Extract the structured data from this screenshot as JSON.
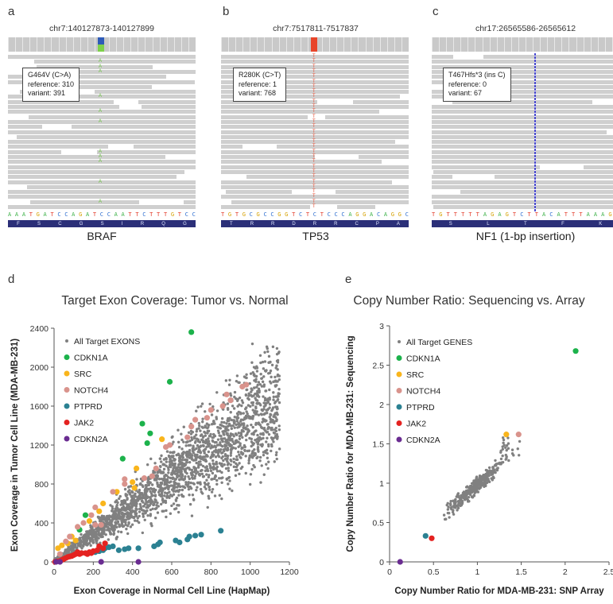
{
  "panels": {
    "a": {
      "letter": "a",
      "locus": "chr7:140127873-140127899",
      "gene": "BRAF",
      "mutation": "G464V (C>A)",
      "reference": "reference: 310",
      "variant": "variant: 391",
      "sequence": "AAATGATCCAGATCCAATTCTTTGTCC",
      "aminoacids": "FSCGSIRQG",
      "coverage_color": "#2e5bb8",
      "alt_color": "#7ed14a",
      "variant_base": "A",
      "variant_color": "#6cc241"
    },
    "b": {
      "letter": "b",
      "locus": "chr7:7517811-7517837",
      "gene": "TP53",
      "mutation": "R280K (C>T)",
      "reference": "reference: 1",
      "variant": "variant: 768",
      "sequence": "TGTGCGCCGGTCTCTCCCAGGACAGGC",
      "aminoacids": "TRRDRRCPA",
      "coverage_color": "#e8452a",
      "variant_base": "T",
      "variant_color": "#e8452a"
    },
    "c": {
      "letter": "c",
      "locus": "chr17:26565586-26565612",
      "gene": "NF1 (1-bp insertion)",
      "mutation": "T467Hfs*3 (ins C)",
      "reference": "reference: 0",
      "variant": "variant: 67",
      "sequence": "TGTTTTTAGAGTCTTACATTTAAAGA",
      "aminoacids": "SLTFK",
      "variant_color": "#4a4ad0"
    }
  },
  "chart_data": [
    {
      "panel": "d",
      "type": "scatter",
      "title": "Target Exon Coverage: Tumor vs. Normal",
      "xlabel": "Exon Coverage in Normal Cell Line (HapMap)",
      "ylabel": "Exon Coverage in Tumor Cell Line (MDA-MB-231)",
      "xlim": [
        0,
        1200
      ],
      "ylim": [
        0,
        2400
      ],
      "xticks": [
        "0",
        "200",
        "400",
        "600",
        "800",
        "1000",
        "1200"
      ],
      "yticks": [
        "0",
        "400",
        "800",
        "1200",
        "1600",
        "2000",
        "2400"
      ],
      "legend_position": "top-left",
      "series": [
        {
          "name": "All Target EXONS",
          "color": "#808080",
          "points": "cloud"
        },
        {
          "name": "CDKN1A",
          "color": "#1cb24b",
          "points": [
            [
              700,
              2360
            ],
            [
              590,
              1850
            ],
            [
              450,
              1420
            ],
            [
              490,
              1320
            ],
            [
              475,
              1220
            ],
            [
              350,
              1060
            ],
            [
              160,
              480
            ],
            [
              130,
              330
            ]
          ]
        },
        {
          "name": "SRC",
          "color": "#f9b51c",
          "points": [
            [
              550,
              1260
            ],
            [
              420,
              960
            ],
            [
              400,
              820
            ],
            [
              410,
              760
            ],
            [
              320,
              720
            ],
            [
              250,
              600
            ],
            [
              230,
              520
            ],
            [
              180,
              420
            ],
            [
              90,
              260
            ],
            [
              110,
              220
            ],
            [
              70,
              190
            ],
            [
              40,
              170
            ],
            [
              20,
              140
            ]
          ]
        },
        {
          "name": "NOTCH4",
          "color": "#d9938c",
          "points": [
            [
              980,
              1820
            ],
            [
              960,
              1800
            ],
            [
              880,
              1720
            ],
            [
              900,
              1660
            ],
            [
              860,
              1600
            ],
            [
              800,
              1560
            ],
            [
              780,
              1480
            ],
            [
              720,
              1460
            ],
            [
              700,
              1390
            ],
            [
              680,
              1280
            ],
            [
              590,
              1200
            ],
            [
              570,
              1180
            ],
            [
              520,
              960
            ],
            [
              500,
              880
            ],
            [
              460,
              860
            ],
            [
              360,
              850
            ],
            [
              360,
              800
            ],
            [
              300,
              720
            ],
            [
              210,
              560
            ],
            [
              190,
              480
            ],
            [
              150,
              400
            ],
            [
              120,
              360
            ],
            [
              210,
              380
            ],
            [
              240,
              380
            ],
            [
              80,
              260
            ],
            [
              60,
              210
            ],
            [
              30,
              80
            ]
          ]
        },
        {
          "name": "PTPRD",
          "color": "#2b8192",
          "points": [
            [
              850,
              320
            ],
            [
              750,
              280
            ],
            [
              720,
              270
            ],
            [
              690,
              260
            ],
            [
              680,
              230
            ],
            [
              640,
              200
            ],
            [
              620,
              220
            ],
            [
              540,
              200
            ],
            [
              530,
              180
            ],
            [
              510,
              160
            ],
            [
              430,
              140
            ],
            [
              380,
              140
            ],
            [
              360,
              130
            ],
            [
              330,
              120
            ],
            [
              300,
              160
            ],
            [
              280,
              150
            ],
            [
              260,
              140
            ],
            [
              250,
              120
            ],
            [
              230,
              110
            ],
            [
              210,
              100
            ]
          ]
        },
        {
          "name": "JAK2",
          "color": "#e42220",
          "points": [
            [
              260,
              190
            ],
            [
              230,
              160
            ],
            [
              250,
              140
            ],
            [
              220,
              120
            ],
            [
              200,
              110
            ],
            [
              180,
              100
            ],
            [
              160,
              90
            ],
            [
              140,
              90
            ],
            [
              130,
              80
            ],
            [
              110,
              80
            ],
            [
              100,
              70
            ],
            [
              90,
              60
            ],
            [
              80,
              55
            ],
            [
              70,
              50
            ],
            [
              60,
              40
            ],
            [
              50,
              30
            ],
            [
              40,
              20
            ],
            [
              30,
              10
            ],
            [
              15,
              5
            ],
            [
              5,
              0
            ],
            [
              120,
              100
            ],
            [
              170,
              80
            ],
            [
              190,
              90
            ]
          ]
        },
        {
          "name": "CDKN2A",
          "color": "#6a2c91",
          "points": [
            [
              10,
              0
            ],
            [
              30,
              0
            ],
            [
              240,
              0
            ],
            [
              430,
              0
            ]
          ]
        }
      ]
    },
    {
      "panel": "e",
      "type": "scatter",
      "title": "Copy Number Ratio: Sequencing vs. Array",
      "xlabel": "Copy Number Ratio for MDA-MB-231: SNP Array",
      "ylabel": "Copy Number Ratio for MDA-MB-231: Sequencing",
      "xlim": [
        0,
        2.5
      ],
      "ylim": [
        0,
        3
      ],
      "xticks": [
        "0",
        "0.5",
        "1",
        "1.5",
        "2",
        "2.5"
      ],
      "yticks": [
        "0",
        "0.5",
        "1",
        "1.5",
        "2",
        "2.5",
        "3"
      ],
      "legend_position": "top-left",
      "series": [
        {
          "name": "All Target GENES",
          "color": "#808080",
          "points": "cloud"
        },
        {
          "name": "CDKN1A",
          "color": "#1cb24b",
          "points": [
            [
              2.12,
              2.68
            ]
          ]
        },
        {
          "name": "SRC",
          "color": "#f9b51c",
          "points": [
            [
              1.33,
              1.62
            ]
          ]
        },
        {
          "name": "NOTCH4",
          "color": "#d9938c",
          "points": [
            [
              1.47,
              1.62
            ]
          ]
        },
        {
          "name": "PTPRD",
          "color": "#2b8192",
          "points": [
            [
              0.41,
              0.33
            ]
          ]
        },
        {
          "name": "JAK2",
          "color": "#e42220",
          "points": [
            [
              0.48,
              0.3
            ]
          ]
        },
        {
          "name": "CDKN2A",
          "color": "#6a2c91",
          "points": [
            [
              0.12,
              0
            ]
          ]
        }
      ]
    }
  ],
  "panel_letters": {
    "d": "d",
    "e": "e"
  }
}
